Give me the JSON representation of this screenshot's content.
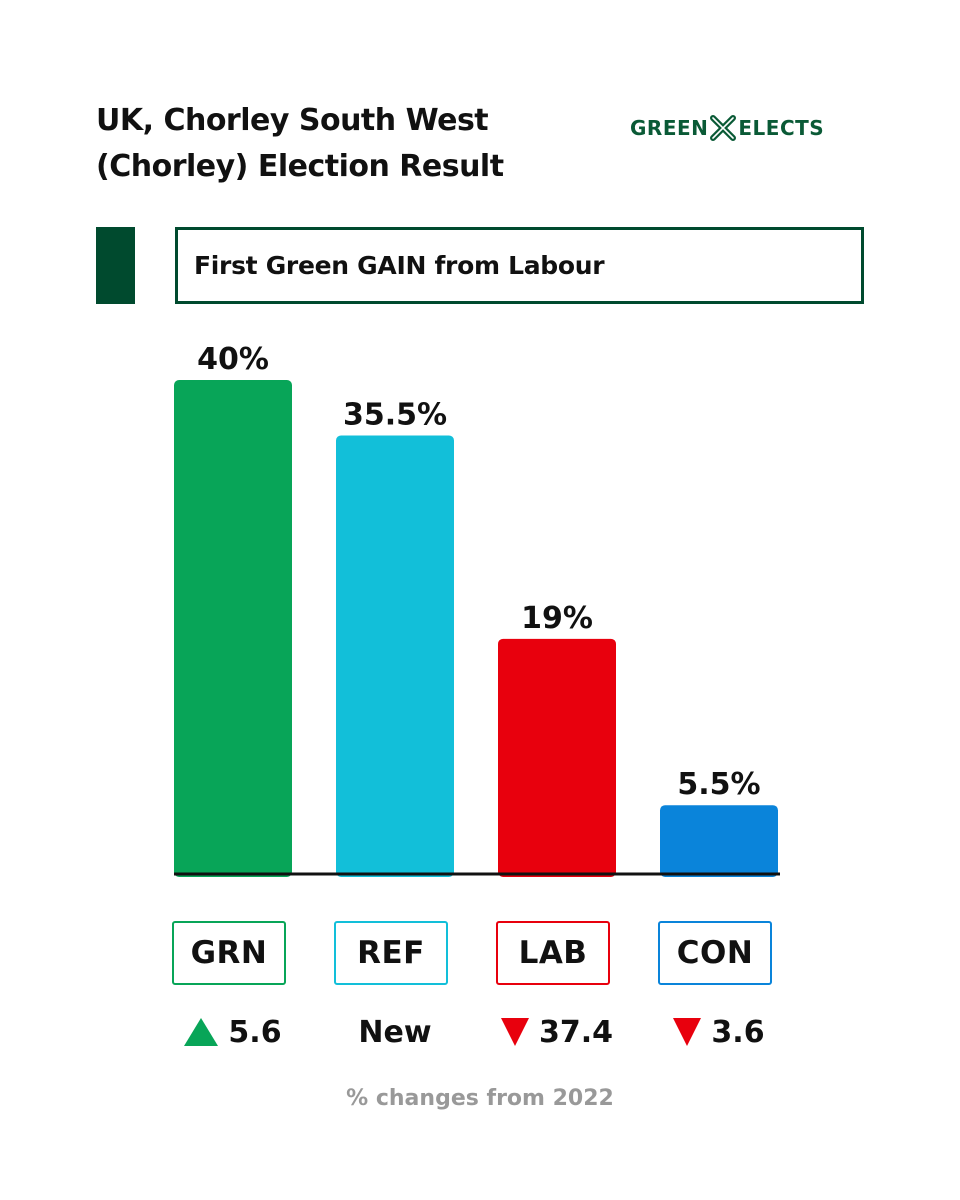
{
  "header": {
    "title_line1": "UK, Chorley South West",
    "title_line2": "(Chorley) Election Result",
    "brand_left": "GREEN",
    "brand_right": "ELECTS",
    "brand_icon": "ballot-cross-icon"
  },
  "banner": {
    "text": "First Green GAIN from Labour"
  },
  "chart_data": {
    "type": "bar",
    "categories": [
      "GRN",
      "REF",
      "LAB",
      "CON"
    ],
    "values": [
      40,
      35.5,
      19,
      5.5
    ],
    "value_labels": [
      "40%",
      "35.5%",
      "19%",
      "5.5%"
    ],
    "colors": [
      "#08a558",
      "#12bfd9",
      "#e8000d",
      "#0a84da"
    ],
    "changes": [
      {
        "direction": "up",
        "text": "5.6"
      },
      {
        "direction": "none",
        "text": "New"
      },
      {
        "direction": "down",
        "text": "37.4"
      },
      {
        "direction": "down",
        "text": "3.6"
      }
    ],
    "ylim": [
      0,
      40
    ],
    "grid": false
  },
  "footnote": "% changes from 2022"
}
